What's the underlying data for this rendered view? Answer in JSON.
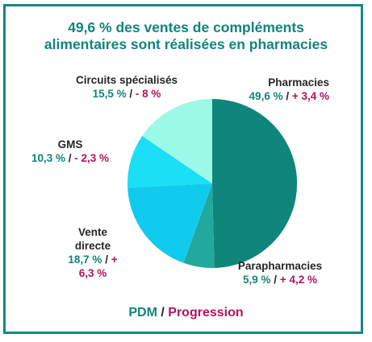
{
  "title_line1": "49,6 % des ventes de compléments",
  "title_line2": "alimentaires sont réalisées en pharmacies",
  "legend": {
    "pdm": "PDM",
    "separator": " / ",
    "progression": "Progression"
  },
  "colors": {
    "pdm": "#10857b",
    "progression": "#b0155c",
    "border": "#17887e"
  },
  "chart_data": {
    "type": "pie",
    "title": "49,6 % des ventes de compléments alimentaires sont réalisées en pharmacies",
    "slices": [
      {
        "name": "Pharmacies",
        "value": 49.6,
        "pdm": "49,6 %",
        "progression": "+ 3,4 %",
        "color": "#10857b"
      },
      {
        "name": "Parapharmacies",
        "value": 5.9,
        "pdm": "5,9 %",
        "progression": "+ 4,2 %",
        "color": "#22a89c"
      },
      {
        "name_line1": "Vente",
        "name_line2": "directe",
        "name": "Vente directe",
        "value": 18.7,
        "pdm": "18,7 %",
        "progression_line1": "+",
        "progression_line2": "6,3 %",
        "progression": "+ 6,3 %",
        "color": "#10cbee"
      },
      {
        "name": "GMS",
        "value": 10.3,
        "pdm": "10,3 %",
        "progression": "- 2,3 %",
        "color": "#1adff5"
      },
      {
        "name": "Circuits spécialisés",
        "value": 15.5,
        "pdm": "15,5 %",
        "progression": "- 8 %",
        "color": "#9cf9e6"
      }
    ]
  }
}
